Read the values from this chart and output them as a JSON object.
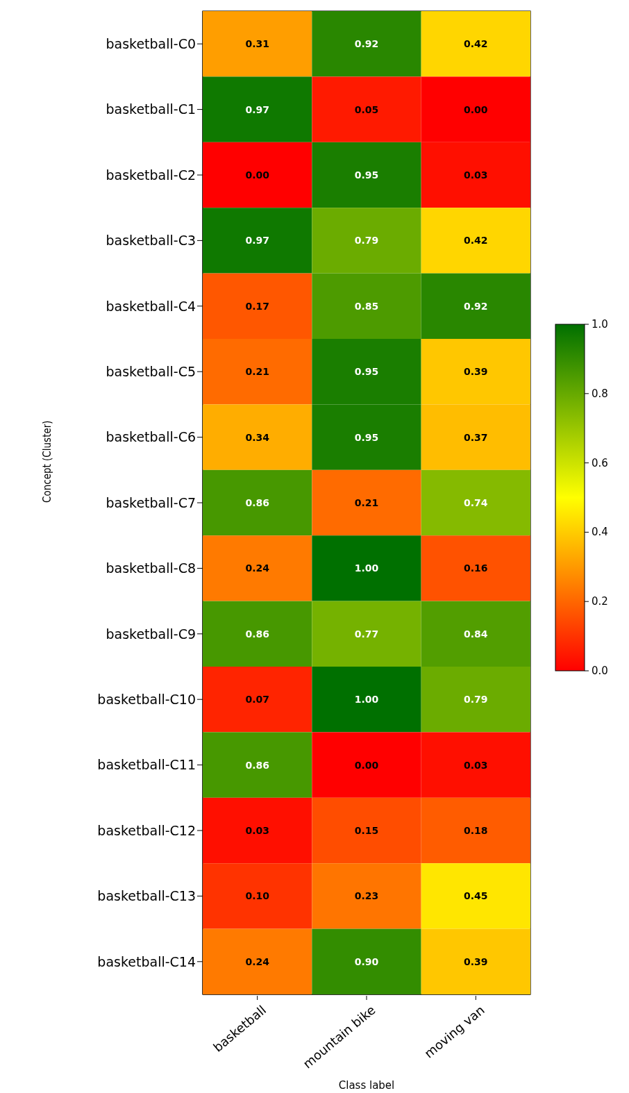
{
  "chart_data": {
    "type": "heatmap",
    "xlabel": "Class label",
    "ylabel": "Concept (Cluster)",
    "categories": [
      "basketball",
      "mountain bike",
      "moving van"
    ],
    "y_categories": [
      "basketball-C0",
      "basketball-C1",
      "basketball-C2",
      "basketball-C3",
      "basketball-C4",
      "basketball-C5",
      "basketball-C6",
      "basketball-C7",
      "basketball-C8",
      "basketball-C9",
      "basketball-C10",
      "basketball-C11",
      "basketball-C12",
      "basketball-C13",
      "basketball-C14"
    ],
    "cells": [
      [
        0.31,
        0.92,
        0.42
      ],
      [
        0.97,
        0.05,
        0.0
      ],
      [
        0.0,
        0.95,
        0.03
      ],
      [
        0.97,
        0.79,
        0.42
      ],
      [
        0.17,
        0.85,
        0.92
      ],
      [
        0.21,
        0.95,
        0.39
      ],
      [
        0.34,
        0.95,
        0.37
      ],
      [
        0.86,
        0.21,
        0.74
      ],
      [
        0.24,
        1.0,
        0.16
      ],
      [
        0.86,
        0.77,
        0.84
      ],
      [
        0.07,
        1.0,
        0.79
      ],
      [
        0.86,
        0.0,
        0.03
      ],
      [
        0.03,
        0.15,
        0.18
      ],
      [
        0.1,
        0.23,
        0.45
      ],
      [
        0.24,
        0.9,
        0.39
      ]
    ],
    "cell_labels": [
      [
        "0.31",
        "0.92",
        "0.42"
      ],
      [
        "0.97",
        "0.05",
        "0.00"
      ],
      [
        "0.00",
        "0.95",
        "0.03"
      ],
      [
        "0.97",
        "0.79",
        "0.42"
      ],
      [
        "0.17",
        "0.85",
        "0.92"
      ],
      [
        "0.21",
        "0.95",
        "0.39"
      ],
      [
        "0.34",
        "0.95",
        "0.37"
      ],
      [
        "0.86",
        "0.21",
        "0.74"
      ],
      [
        "0.24",
        "1.00",
        "0.16"
      ],
      [
        "0.86",
        "0.77",
        "0.84"
      ],
      [
        "0.07",
        "1.00",
        "0.79"
      ],
      [
        "0.86",
        "0.00",
        "0.03"
      ],
      [
        "0.03",
        "0.15",
        "0.18"
      ],
      [
        "0.10",
        "0.23",
        "0.45"
      ],
      [
        "0.24",
        "0.90",
        "0.39"
      ]
    ],
    "clim": [
      0,
      1
    ],
    "cticks": [
      {
        "value": 0,
        "label": "0.0"
      },
      {
        "value": 0.2,
        "label": "0.2"
      },
      {
        "value": 0.4,
        "label": "0.4"
      },
      {
        "value": 0.6,
        "label": "0.6"
      },
      {
        "value": 0.8,
        "label": "0.8"
      },
      {
        "value": 1,
        "label": "1.0"
      }
    ]
  }
}
